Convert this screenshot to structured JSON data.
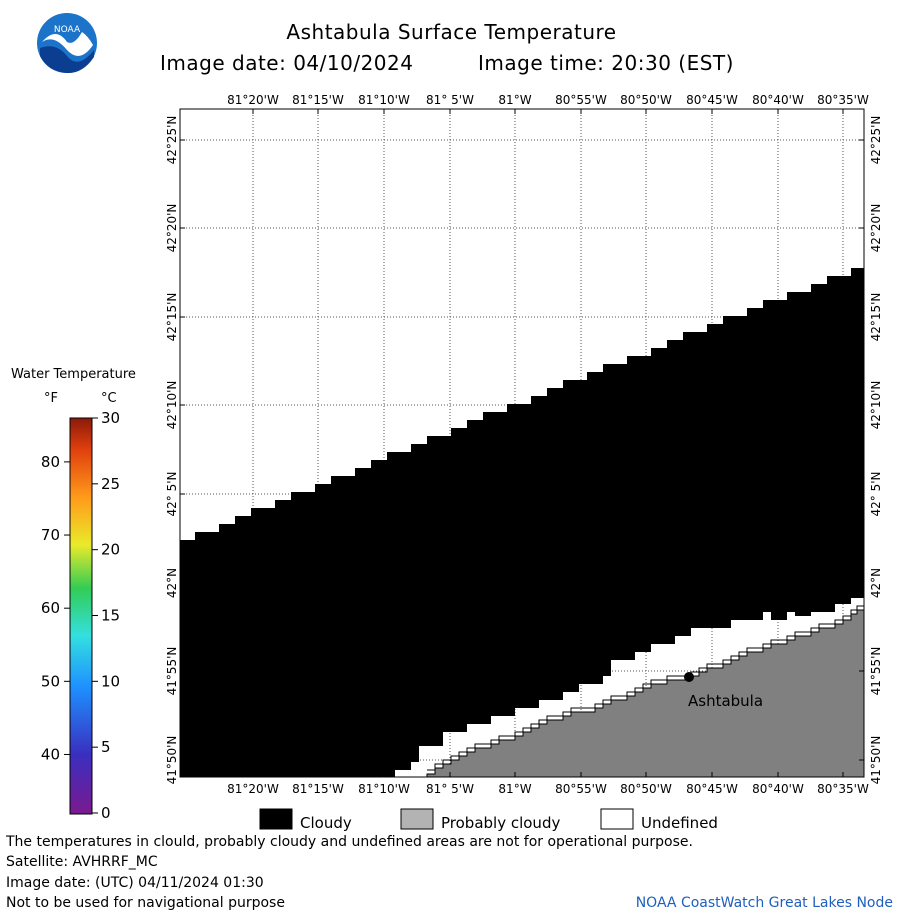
{
  "header": {
    "title": "Ashtabula Surface Temperature",
    "image_date": "Image date: 04/10/2024",
    "image_time": "Image time: 20:30 (EST)",
    "logo_text": "NOAA"
  },
  "map": {
    "lon_labels": [
      "81°20'W",
      "81°15'W",
      "81°10'W",
      "81° 5'W",
      "81°W",
      "80°55'W",
      "80°50'W",
      "80°45'W",
      "80°40'W",
      "80°35'W"
    ],
    "lat_labels": [
      "42°25'N",
      "42°20'N",
      "42°15'N",
      "42°10'N",
      "42° 5'N",
      "42°N",
      "41°55'N",
      "41°50'N"
    ],
    "city_label": "Ashtabula",
    "colors": {
      "cloud": "#000000",
      "land": "#808080",
      "undefined": "#ffffff",
      "grid": "#555555"
    }
  },
  "scale": {
    "title": "Water Temperature",
    "unit_f": "°F",
    "unit_c": "°C",
    "f_ticks": [
      "80",
      "70",
      "60",
      "50",
      "40"
    ],
    "c_ticks": [
      "30",
      "25",
      "20",
      "15",
      "10",
      "5",
      "0"
    ]
  },
  "legend": {
    "cloudy": "Cloudy",
    "probably_cloudy": "Probably cloudy",
    "undefined": "Undefined"
  },
  "footer": {
    "disclaimer": "The temperatures in clould, probably cloudy and undefined areas are not for operational purpose.",
    "satellite": "Satellite: AVHRRF_MC",
    "utc_date": "Image date: (UTC) 04/11/2024  01:30",
    "nav_warning": "Not to be used for navigational purpose",
    "credit": "NOAA CoastWatch Great Lakes Node"
  }
}
